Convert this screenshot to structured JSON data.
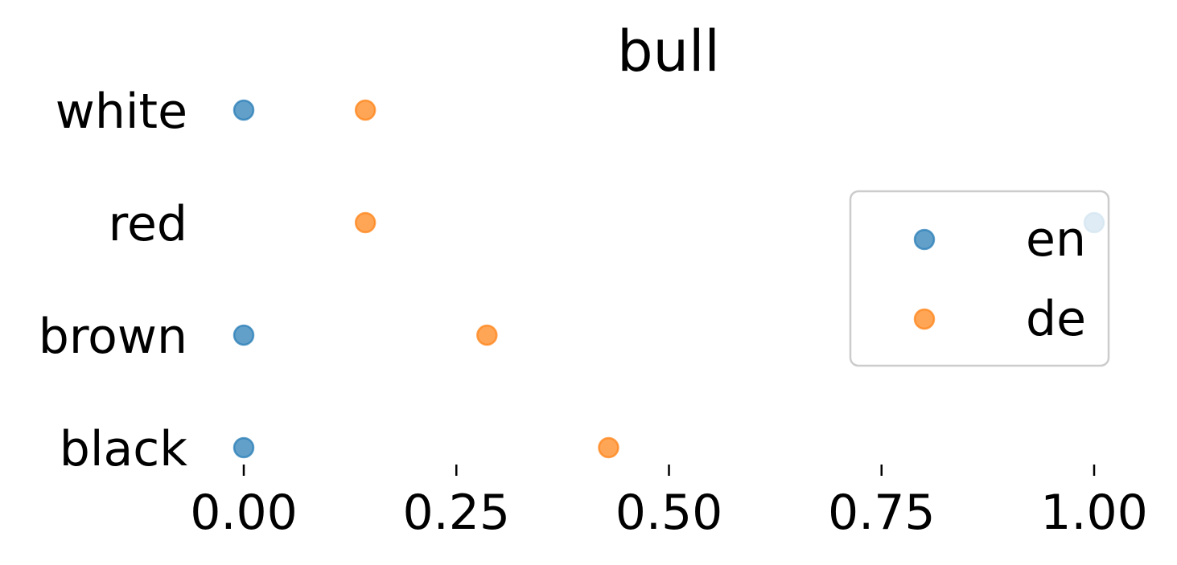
{
  "chart_data": {
    "type": "scatter",
    "title": "bull",
    "xlabel": "",
    "ylabel": "",
    "xlim": [
      0.0,
      1.0
    ],
    "x_ticks": [
      "0.00",
      "0.25",
      "0.50",
      "0.75",
      "1.00"
    ],
    "categories": [
      "white",
      "red",
      "brown",
      "black"
    ],
    "series": [
      {
        "name": "en",
        "color": "#1f77b4",
        "values": [
          0.0,
          1.0,
          0.0,
          0.0
        ]
      },
      {
        "name": "de",
        "color": "#ff7f0e",
        "values": [
          0.143,
          0.143,
          0.286,
          0.429
        ]
      }
    ],
    "legend": {
      "position": "right",
      "entries": [
        "en",
        "de"
      ]
    },
    "grid": false
  }
}
